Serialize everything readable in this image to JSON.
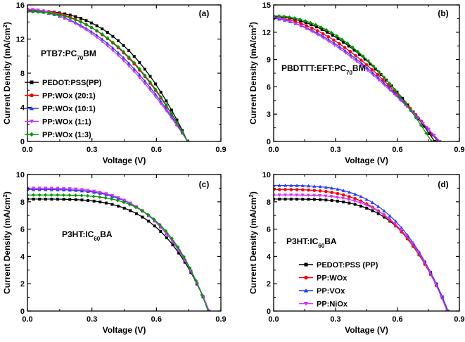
{
  "chart_data": [
    {
      "type": "line",
      "panel_label": "(a)",
      "material": "PTB7:PC",
      "material_sub": "70",
      "material_suffix": "BM",
      "xlabel": "Voltage (V)",
      "ylabel": "Current Density (mA/cm",
      "ylabel_sup": "2",
      "ylabel_suffix": ")",
      "xlim": [
        0,
        0.9
      ],
      "ylim": [
        0,
        16
      ],
      "xticks": [
        "0.0",
        "0.3",
        "0.6",
        "0.9"
      ],
      "xtick_values": [
        0,
        0.3,
        0.6,
        0.9
      ],
      "yticks": [
        "0",
        "4",
        "8",
        "12",
        "16"
      ],
      "ytick_values": [
        0,
        4,
        8,
        12,
        16
      ],
      "series": [
        {
          "name": "PEDOT:PSS(PP)",
          "color": "#000000",
          "marker": "square",
          "isc": 15.3,
          "voc": 0.745,
          "n": 2.6
        },
        {
          "name": "PP:WOx (20:1)",
          "color": "#ff0000",
          "marker": "circle",
          "isc": 15.4,
          "voc": 0.745,
          "n": 2.2
        },
        {
          "name": "PP:WOx (10:1)",
          "color": "#1f3fff",
          "marker": "triangle-up",
          "isc": 15.3,
          "voc": 0.745,
          "n": 2.0
        },
        {
          "name": "PP:WOx (1:1)",
          "color": "#cc33ff",
          "marker": "triangle-down",
          "isc": 15.5,
          "voc": 0.745,
          "n": 1.85
        },
        {
          "name": "PP:WOx (1:3)",
          "color": "#009900",
          "marker": "diamond",
          "isc": 15.2,
          "voc": 0.745,
          "n": 2.3
        }
      ],
      "legend": "center-left"
    },
    {
      "type": "line",
      "panel_label": "(b)",
      "material": "PBDTTT:EFT:PC",
      "material_sub": "70",
      "material_suffix": "BM",
      "xlabel": "Voltage (V)",
      "ylabel": "Current Density (mA/cm",
      "ylabel_sup": "2",
      "ylabel_suffix": ")",
      "xlim": [
        0,
        0.9
      ],
      "ylim": [
        0,
        15
      ],
      "xticks": [
        "0.0",
        "0.3",
        "0.6",
        "0.9"
      ],
      "xtick_values": [
        0,
        0.3,
        0.6,
        0.9
      ],
      "yticks": [
        "0",
        "3",
        "6",
        "9",
        "12",
        "15"
      ],
      "ytick_values": [
        0,
        3,
        6,
        9,
        12,
        15
      ],
      "series": [
        {
          "name": "PEDOT:PSS(PP)",
          "color": "#000000",
          "marker": "square",
          "isc": 13.7,
          "voc": 0.78,
          "n": 1.9
        },
        {
          "name": "PP:WOx (20:1)",
          "color": "#ff0000",
          "marker": "circle",
          "isc": 13.6,
          "voc": 0.795,
          "n": 1.7
        },
        {
          "name": "PP:WOx (10:1)",
          "color": "#1f3fff",
          "marker": "triangle-up",
          "isc": 13.5,
          "voc": 0.8,
          "n": 1.6
        },
        {
          "name": "PP:WOx (1:1)",
          "color": "#cc33ff",
          "marker": "triangle-down",
          "isc": 13.6,
          "voc": 0.805,
          "n": 1.5
        },
        {
          "name": "PP:WOx (1:3)",
          "color": "#009900",
          "marker": "diamond",
          "isc": 13.8,
          "voc": 0.765,
          "n": 2.0
        }
      ]
    },
    {
      "type": "line",
      "panel_label": "(c)",
      "material": "P3HT:IC",
      "material_sub": "60",
      "material_suffix": "BA",
      "xlabel": "Voltage (V)",
      "ylabel": "Current Density (mA/cm",
      "ylabel_sup": "2",
      "ylabel_suffix": ")",
      "xlim": [
        0,
        0.9
      ],
      "ylim": [
        0,
        10
      ],
      "xticks": [
        "0.0",
        "0.3",
        "0.6",
        "0.9"
      ],
      "xtick_values": [
        0,
        0.3,
        0.6,
        0.9
      ],
      "yticks": [
        "0",
        "2",
        "4",
        "6",
        "8",
        "10"
      ],
      "ytick_values": [
        0,
        2,
        4,
        6,
        8,
        10
      ],
      "series": [
        {
          "name": "PEDOT:PSS(PP)",
          "color": "#000000",
          "marker": "square",
          "isc": 8.2,
          "voc": 0.845,
          "n": 4.0
        },
        {
          "name": "PP:WOx (20:1)",
          "color": "#ff0000",
          "marker": "circle",
          "isc": 8.9,
          "voc": 0.845,
          "n": 3.8
        },
        {
          "name": "PP:WOx (10:1)",
          "color": "#1f3fff",
          "marker": "triangle-up",
          "isc": 8.9,
          "voc": 0.845,
          "n": 3.8
        },
        {
          "name": "PP:WOx (1:1)",
          "color": "#cc33ff",
          "marker": "triangle-down",
          "isc": 9.0,
          "voc": 0.845,
          "n": 3.7
        },
        {
          "name": "PP:WOx (1:3)",
          "color": "#009900",
          "marker": "diamond",
          "isc": 8.5,
          "voc": 0.84,
          "n": 4.4
        }
      ]
    },
    {
      "type": "line",
      "panel_label": "(d)",
      "material": "P3HT:IC",
      "material_sub": "60",
      "material_suffix": "BA",
      "xlabel": "Voltage (V)",
      "ylabel": "Current Density (mA/cm",
      "ylabel_sup": "2",
      "ylabel_suffix": ")",
      "xlim": [
        0,
        0.9
      ],
      "ylim": [
        0,
        10
      ],
      "xticks": [
        "0.0",
        "0.3",
        "0.6",
        "0.9"
      ],
      "xtick_values": [
        0,
        0.3,
        0.6,
        0.9
      ],
      "yticks": [
        "0",
        "2",
        "4",
        "6",
        "8",
        "10"
      ],
      "ytick_values": [
        0,
        2,
        4,
        6,
        8,
        10
      ],
      "series": [
        {
          "name": "PEDOT:PSS (PP)",
          "color": "#000000",
          "marker": "square",
          "isc": 8.2,
          "voc": 0.845,
          "n": 4.0
        },
        {
          "name": "PP:WOx",
          "color": "#ff0000",
          "marker": "circle",
          "isc": 8.9,
          "voc": 0.845,
          "n": 3.4
        },
        {
          "name": "PP:VOx",
          "color": "#1f3fff",
          "marker": "triangle-up",
          "isc": 9.2,
          "voc": 0.845,
          "n": 3.5
        },
        {
          "name": "PP:NiOx",
          "color": "#cc33ff",
          "marker": "triangle-down",
          "isc": 8.5,
          "voc": 0.84,
          "n": 3.9
        }
      ],
      "legend": "bottom-right"
    }
  ]
}
